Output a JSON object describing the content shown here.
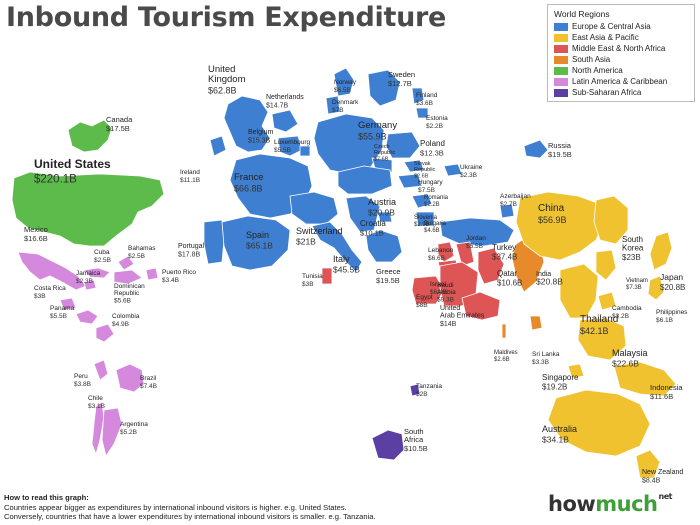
{
  "title": "Inbound Tourism Expenditure",
  "legend": {
    "title": "World Regions",
    "items": [
      {
        "label": "Europe & Central Asia",
        "color": "#3f7fd1"
      },
      {
        "label": "East Asia & Pacific",
        "color": "#f0c230"
      },
      {
        "label": "Middle East & North Africa",
        "color": "#dd5555"
      },
      {
        "label": "South Asia",
        "color": "#e68a2c"
      },
      {
        "label": "North America",
        "color": "#5cbb4a"
      },
      {
        "label": "Latin America & Caribbean",
        "color": "#d589dc"
      },
      {
        "label": "Sub-Saharan Africa",
        "color": "#5c3fa3"
      }
    ]
  },
  "countries": {
    "usa": {
      "name": "United States",
      "value": "$220.1B"
    },
    "canada": {
      "name": "Canada",
      "value": "$17.5B"
    },
    "mexico": {
      "name": "Mexico",
      "value": "$16.6B"
    },
    "cuba": {
      "name": "Cuba",
      "value": "$2.5B"
    },
    "bahamas": {
      "name": "Bahamas",
      "value": "$2.5B"
    },
    "jamaica": {
      "name": "Jamaica",
      "value": "$2.3B"
    },
    "puerto_rico": {
      "name": "Puerto Rico",
      "value": "$3.4B"
    },
    "dominican": {
      "name": "Dominican Republic",
      "value": "$5.6B"
    },
    "costa_rica": {
      "name": "Costa Rica",
      "value": "$3B"
    },
    "panama": {
      "name": "Panama",
      "value": "$5.5B"
    },
    "colombia": {
      "name": "Colombia",
      "value": "$4.9B"
    },
    "peru": {
      "name": "Peru",
      "value": "$3.8B"
    },
    "brazil": {
      "name": "Brazil",
      "value": "$7.4B"
    },
    "chile": {
      "name": "Chile",
      "value": "$3.1B"
    },
    "argentina": {
      "name": "Argentina",
      "value": "$5.2B"
    },
    "uk": {
      "name": "United Kingdom",
      "value": "$62.8B"
    },
    "ireland": {
      "name": "Ireland",
      "value": "$11.1B"
    },
    "netherlands": {
      "name": "Netherlands",
      "value": "$14.7B"
    },
    "belgium": {
      "name": "Belgium",
      "value": "$15.3B"
    },
    "luxembourg": {
      "name": "Luxembourg",
      "value": "$5.5B"
    },
    "france": {
      "name": "France",
      "value": "$66.8B"
    },
    "portugal": {
      "name": "Portugal",
      "value": "$17.8B"
    },
    "spain": {
      "name": "Spain",
      "value": "$65.1B"
    },
    "switzerland": {
      "name": "Switzerland",
      "value": "$21B"
    },
    "italy": {
      "name": "Italy",
      "value": "$45.5B"
    },
    "norway": {
      "name": "Norway",
      "value": "$6.5B"
    },
    "denmark": {
      "name": "Denmark",
      "value": "$7B"
    },
    "sweden": {
      "name": "Sweden",
      "value": "$12.7B"
    },
    "finland": {
      "name": "Finland",
      "value": "$3.6B"
    },
    "estonia": {
      "name": "Estonia",
      "value": "$2.2B"
    },
    "germany": {
      "name": "Germany",
      "value": "$55.9B"
    },
    "poland": {
      "name": "Poland",
      "value": "$12.3B"
    },
    "czech": {
      "name": "Czech Republic",
      "value": "$7.6B"
    },
    "slovakia": {
      "name": "Slovak Republic",
      "value": "$2.6B"
    },
    "hungary": {
      "name": "Hungary",
      "value": "$7.5B"
    },
    "austria": {
      "name": "Austria",
      "value": "$20.9B"
    },
    "slovenia": {
      "name": "Slovenia",
      "value": "$2.9B"
    },
    "croatia": {
      "name": "Croatia",
      "value": "$10.1B"
    },
    "romania": {
      "name": "Romania",
      "value": "$2.2B"
    },
    "bulgaria": {
      "name": "Bulgaria",
      "value": "$4.6B"
    },
    "greece": {
      "name": "Greece",
      "value": "$19.5B"
    },
    "ukraine": {
      "name": "Ukraine",
      "value": "$2.3B"
    },
    "russia": {
      "name": "Russia",
      "value": "$19.5B"
    },
    "azerbaijan": {
      "name": "Azerbaijan",
      "value": "$2.7B"
    },
    "turkey": {
      "name": "Turkey",
      "value": "$37.4B"
    },
    "tunisia": {
      "name": "Tunisia",
      "value": "$3B"
    },
    "lebanon": {
      "name": "Lebanon",
      "value": "$6.6B"
    },
    "jordan": {
      "name": "Jordan",
      "value": "$5.5B"
    },
    "israel": {
      "name": "Israel",
      "value": "$6.4B"
    },
    "egypt": {
      "name": "Egypt",
      "value": "$8B"
    },
    "saudi": {
      "name": "Saudi Arabia",
      "value": "$9.3B"
    },
    "qatar": {
      "name": "Qatar",
      "value": "$10.6B"
    },
    "uae": {
      "name": "United Arab Emirates",
      "value": "$14B"
    },
    "india": {
      "name": "India",
      "value": "$20.8B"
    },
    "maldives": {
      "name": "Maldives",
      "value": "$2.6B"
    },
    "sri_lanka": {
      "name": "Sri Lanka",
      "value": "$3.3B"
    },
    "china": {
      "name": "China",
      "value": "$56.9B"
    },
    "south_korea": {
      "name": "South Korea",
      "value": "$23B"
    },
    "japan": {
      "name": "Japan",
      "value": "$20.8B"
    },
    "vietnam": {
      "name": "Vietnam",
      "value": "$7.3B"
    },
    "philippines": {
      "name": "Philippines",
      "value": "$6.1B"
    },
    "thailand": {
      "name": "Thailand",
      "value": "$42.1B"
    },
    "cambodia": {
      "name": "Cambodia",
      "value": "$3.2B"
    },
    "malaysia": {
      "name": "Malaysia",
      "value": "$22.6B"
    },
    "singapore": {
      "name": "Singapore",
      "value": "$19.2B"
    },
    "indonesia": {
      "name": "Indonesia",
      "value": "$11.6B"
    },
    "australia": {
      "name": "Australia",
      "value": "$34.1B"
    },
    "new_zealand": {
      "name": "New Zealand",
      "value": "$8.4B"
    },
    "tanzania": {
      "name": "Tanzania",
      "value": "$2B"
    },
    "south_africa": {
      "name": "South Africa",
      "value": "$10.5B"
    }
  },
  "how_to": {
    "heading": "How to read this graph:",
    "line1": "Countries appear bigger as expenditures by international inbound visitors is higher. e.g. United States.",
    "line2": "Conversely, countries that have a lower expenditures by international inbound visitors is smaller. e.g. Tanzania."
  },
  "logo": {
    "part1": "how",
    "part2": "much",
    "suffix": "net"
  }
}
